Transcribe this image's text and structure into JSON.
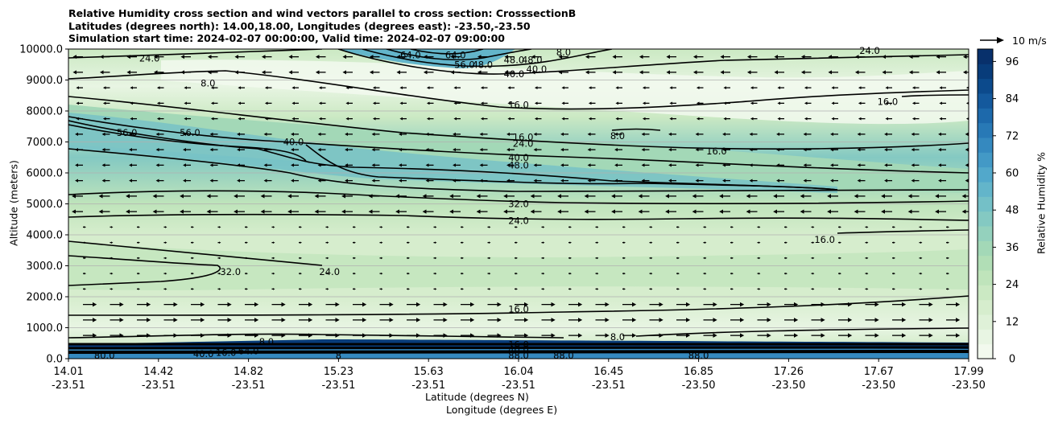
{
  "chart_data": {
    "type": "contourf_cross_section",
    "title_lines": [
      "Relative Humidity cross section and wind vectors parallel to cross section: CrosssectionB",
      "Latitudes (degrees north): 14.00,18.00, Longitudes (degrees east): -23.50,-23.50",
      "Simulation start time: 2024-02-07 00:00:00, Valid time: 2024-02-07 09:00:00"
    ],
    "ylabel": "Altitude (meters)",
    "xlabel_lat": "Latitude (degrees N)",
    "xlabel_lon": "Longitude (degrees E)",
    "ylim": [
      0,
      10000
    ],
    "yticks": [
      "0.0",
      "1000.0",
      "2000.0",
      "3000.0",
      "4000.0",
      "5000.0",
      "6000.0",
      "7000.0",
      "8000.0",
      "9000.0",
      "10000.0"
    ],
    "xticks_lat": [
      "14.01",
      "14.42",
      "14.82",
      "15.23",
      "15.63",
      "16.04",
      "16.45",
      "16.85",
      "17.26",
      "17.67",
      "17.99"
    ],
    "xticks_lon": [
      "-23.51",
      "-23.51",
      "-23.51",
      "-23.51",
      "-23.51",
      "-23.51",
      "-23.51",
      "-23.50",
      "-23.50",
      "-23.50",
      "-23.50"
    ],
    "colorbar": {
      "label": "Relative Humidity %",
      "ticks": [
        "0",
        "12",
        "24",
        "36",
        "48",
        "60",
        "72",
        "84",
        "96"
      ],
      "range": [
        0,
        100
      ]
    },
    "quiver_key": "10 m/s",
    "contour_labels": [
      {
        "text": "24.0",
        "x": 0.09,
        "y": 9.7
      },
      {
        "text": "8.0",
        "x": 0.155,
        "y": 8.9
      },
      {
        "text": "64.0",
        "x": 0.38,
        "y": 9.8
      },
      {
        "text": "64.0",
        "x": 0.43,
        "y": 9.8
      },
      {
        "text": "56.0",
        "x": 0.44,
        "y": 9.5
      },
      {
        "text": "48.0",
        "x": 0.46,
        "y": 9.5
      },
      {
        "text": "48.0",
        "x": 0.495,
        "y": 9.65
      },
      {
        "text": "48.0",
        "x": 0.515,
        "y": 9.65
      },
      {
        "text": "40.0",
        "x": 0.495,
        "y": 9.2
      },
      {
        "text": "40.0",
        "x": 0.52,
        "y": 9.35
      },
      {
        "text": "8.0",
        "x": 0.55,
        "y": 9.9
      },
      {
        "text": "24.0",
        "x": 0.89,
        "y": 9.95
      },
      {
        "text": "16.0",
        "x": 0.5,
        "y": 8.2
      },
      {
        "text": "16.0",
        "x": 0.91,
        "y": 8.3
      },
      {
        "text": "56.0",
        "x": 0.065,
        "y": 7.3
      },
      {
        "text": "56.0",
        "x": 0.135,
        "y": 7.3
      },
      {
        "text": "8.0",
        "x": 0.61,
        "y": 7.2
      },
      {
        "text": "40.0",
        "x": 0.25,
        "y": 7.0
      },
      {
        "text": "16.0",
        "x": 0.505,
        "y": 7.15
      },
      {
        "text": "24.0",
        "x": 0.505,
        "y": 6.95
      },
      {
        "text": "16.0",
        "x": 0.72,
        "y": 6.7
      },
      {
        "text": "40.0",
        "x": 0.5,
        "y": 6.5
      },
      {
        "text": "48.0",
        "x": 0.5,
        "y": 6.25
      },
      {
        "text": "32.0",
        "x": 0.5,
        "y": 5.0
      },
      {
        "text": "24.0",
        "x": 0.5,
        "y": 4.45
      },
      {
        "text": "16.0",
        "x": 0.84,
        "y": 3.85
      },
      {
        "text": "32.0",
        "x": 0.18,
        "y": 2.8
      },
      {
        "text": "24.0",
        "x": 0.29,
        "y": 2.8
      },
      {
        "text": "16.0",
        "x": 0.5,
        "y": 1.6
      },
      {
        "text": "8.0",
        "x": 0.61,
        "y": 0.7
      },
      {
        "text": "8.0",
        "x": 0.22,
        "y": 0.55
      },
      {
        "text": "16.0",
        "x": 0.5,
        "y": 0.45
      },
      {
        "text": "40.0",
        "x": 0.5,
        "y": 0.3
      },
      {
        "text": "88.0",
        "x": 0.5,
        "y": 0.1
      },
      {
        "text": "88.0",
        "x": 0.55,
        "y": 0.1
      },
      {
        "text": "88.0",
        "x": 0.7,
        "y": 0.1
      },
      {
        "text": "80.0",
        "x": 0.04,
        "y": 0.1
      },
      {
        "text": "40.0",
        "x": 0.15,
        "y": 0.15
      },
      {
        "text": "16.0",
        "x": 0.175,
        "y": 0.2
      },
      {
        "text": "64.0",
        "x": 0.2,
        "y": 0.25
      },
      {
        "text": "8",
        "x": 0.3,
        "y": 0.1
      }
    ]
  },
  "colors": {
    "rh_scale": [
      "#f2f9ee",
      "#e8f5e3",
      "#dff1d8",
      "#d6edcd",
      "#cbe9c3",
      "#bfe4bb",
      "#b1deb6",
      "#a3d8b7",
      "#94d1bd",
      "#84c9c2",
      "#74c0c7",
      "#63b5ca",
      "#52a8cb",
      "#4399c6",
      "#3589bf",
      "#2879b6",
      "#1d69ab",
      "#14599d",
      "#0c4a8c",
      "#083c7a",
      "#08306b"
    ]
  }
}
